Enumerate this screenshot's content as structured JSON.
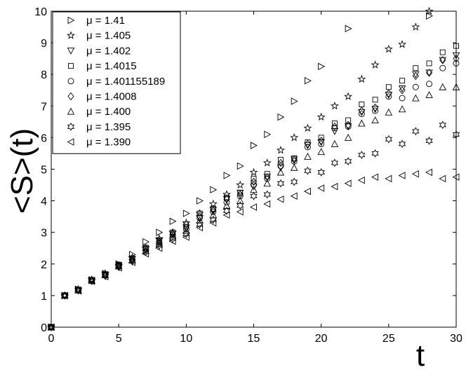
{
  "chart_data": {
    "type": "scatter",
    "xlabel": "t",
    "ylabel": "<S>(t)",
    "xlim": [
      0,
      30
    ],
    "ylim": [
      0,
      10
    ],
    "xticks": [
      "0",
      "5",
      "10",
      "15",
      "20",
      "25",
      "30"
    ],
    "yticks": [
      "0",
      "1",
      "2",
      "3",
      "4",
      "5",
      "6",
      "7",
      "8",
      "9",
      "10"
    ],
    "grid": false,
    "legend_position": "top-left",
    "series": [
      {
        "name": "μ = 1.41",
        "marker": "triangle-right",
        "x": [
          0,
          1,
          2,
          3,
          4,
          5,
          6,
          7,
          8,
          9,
          10,
          11,
          12,
          13,
          14,
          15,
          16,
          17,
          18,
          19,
          20,
          22,
          28
        ],
        "y": [
          0,
          1.0,
          1.2,
          1.5,
          1.7,
          2.0,
          2.3,
          2.7,
          3.0,
          3.35,
          3.6,
          4.0,
          4.35,
          4.8,
          5.1,
          5.75,
          6.1,
          6.65,
          7.15,
          7.8,
          8.25,
          9.45,
          9.85
        ]
      },
      {
        "name": "μ = 1.405",
        "marker": "pentagram",
        "x": [
          0,
          1,
          2,
          3,
          4,
          5,
          6,
          7,
          8,
          9,
          10,
          11,
          12,
          13,
          14,
          15,
          16,
          17,
          18,
          19,
          20,
          21,
          22,
          23,
          24,
          25,
          26,
          27,
          28
        ],
        "y": [
          0,
          1.0,
          1.2,
          1.5,
          1.7,
          1.95,
          2.2,
          2.5,
          2.8,
          3.0,
          3.3,
          3.6,
          3.9,
          4.2,
          4.5,
          4.9,
          5.2,
          5.6,
          6.0,
          6.3,
          6.65,
          7.0,
          7.3,
          7.85,
          8.3,
          8.8,
          8.95,
          9.5,
          10.0
        ]
      },
      {
        "name": "μ = 1.402",
        "marker": "triangle-down",
        "x": [
          0,
          1,
          2,
          3,
          4,
          5,
          6,
          7,
          8,
          9,
          10,
          11,
          12,
          13,
          14,
          15,
          16,
          17,
          18,
          19,
          20,
          21,
          22,
          23,
          24,
          25,
          26,
          27,
          28,
          29,
          30
        ],
        "y": [
          0,
          1.0,
          1.18,
          1.48,
          1.66,
          1.95,
          2.15,
          2.48,
          2.72,
          2.95,
          3.15,
          3.45,
          3.7,
          4.05,
          4.25,
          4.45,
          4.75,
          5.05,
          5.3,
          5.75,
          5.85,
          6.2,
          6.35,
          6.8,
          6.9,
          7.35,
          7.55,
          8.0,
          8.05,
          8.45,
          8.6
        ]
      },
      {
        "name": "μ = 1.4015",
        "marker": "square",
        "x": [
          0,
          1,
          2,
          3,
          4,
          5,
          6,
          7,
          8,
          9,
          10,
          11,
          12,
          13,
          14,
          15,
          16,
          17,
          18,
          19,
          20,
          21,
          22,
          23,
          24,
          25,
          26,
          27,
          28,
          29,
          30
        ],
        "y": [
          0,
          1.0,
          1.18,
          1.5,
          1.68,
          1.98,
          2.18,
          2.52,
          2.75,
          3.0,
          3.25,
          3.6,
          3.75,
          4.1,
          4.25,
          4.7,
          4.85,
          5.3,
          5.35,
          5.85,
          6.0,
          6.45,
          6.55,
          7.05,
          7.2,
          7.6,
          7.8,
          8.2,
          8.35,
          8.7,
          8.9
        ]
      },
      {
        "name": "μ = 1.401155189",
        "marker": "circle",
        "x": [
          0,
          1,
          2,
          3,
          4,
          5,
          6,
          7,
          8,
          9,
          10,
          11,
          12,
          13,
          14,
          15,
          16,
          17,
          18,
          19,
          20,
          21,
          22,
          23,
          24,
          25,
          26,
          27,
          28,
          29,
          30
        ],
        "y": [
          0,
          1.0,
          1.17,
          1.47,
          1.65,
          1.95,
          2.13,
          2.45,
          2.68,
          2.92,
          3.1,
          3.45,
          3.65,
          3.95,
          4.15,
          4.5,
          4.7,
          5.1,
          5.25,
          5.7,
          5.8,
          6.3,
          6.35,
          6.75,
          6.85,
          7.3,
          7.25,
          7.6,
          7.7,
          8.2,
          8.35
        ]
      },
      {
        "name": "μ = 1.4008",
        "marker": "diamond",
        "x": [
          0,
          1,
          2,
          3,
          4,
          5,
          6,
          7,
          8,
          9,
          10,
          11,
          12,
          13,
          14,
          15,
          16,
          17,
          18,
          19,
          20,
          21,
          22,
          23,
          24,
          25,
          26,
          27,
          28,
          29,
          30
        ],
        "y": [
          0,
          1.0,
          1.17,
          1.48,
          1.65,
          1.95,
          2.15,
          2.48,
          2.7,
          2.95,
          3.15,
          3.5,
          3.7,
          4.05,
          4.2,
          4.6,
          4.75,
          5.2,
          5.3,
          5.8,
          5.9,
          6.35,
          6.4,
          6.85,
          6.95,
          7.4,
          7.5,
          7.95,
          8.05,
          8.45,
          8.5
        ]
      },
      {
        "name": "μ = 1.400",
        "marker": "triangle-up",
        "x": [
          0,
          1,
          2,
          3,
          4,
          5,
          6,
          7,
          8,
          9,
          10,
          11,
          12,
          13,
          14,
          15,
          16,
          17,
          18,
          19,
          20,
          21,
          22,
          23,
          24,
          25,
          26,
          27,
          28,
          29,
          30
        ],
        "y": [
          0,
          1.0,
          1.17,
          1.47,
          1.65,
          1.93,
          2.12,
          2.42,
          2.65,
          2.88,
          3.05,
          3.38,
          3.55,
          3.85,
          4.0,
          4.35,
          4.55,
          4.9,
          5.05,
          5.4,
          5.55,
          5.8,
          6.0,
          6.45,
          6.55,
          6.8,
          6.9,
          7.25,
          7.35,
          7.6,
          7.6
        ]
      },
      {
        "name": "μ = 1.395",
        "marker": "hexagram",
        "x": [
          0,
          1,
          2,
          3,
          4,
          5,
          6,
          7,
          8,
          9,
          10,
          11,
          12,
          13,
          14,
          15,
          16,
          17,
          18,
          19,
          20,
          21,
          22,
          23,
          24,
          25,
          26,
          27,
          28,
          29,
          30
        ],
        "y": [
          0,
          1.0,
          1.16,
          1.46,
          1.62,
          1.9,
          2.08,
          2.38,
          2.58,
          2.8,
          2.95,
          3.25,
          3.4,
          3.68,
          3.85,
          4.15,
          4.2,
          4.55,
          4.6,
          4.95,
          4.9,
          5.2,
          5.25,
          5.45,
          5.5,
          5.95,
          5.8,
          6.2,
          5.9,
          6.4,
          6.1
        ]
      },
      {
        "name": "μ = 1.390",
        "marker": "triangle-left",
        "x": [
          0,
          1,
          2,
          3,
          4,
          5,
          6,
          7,
          8,
          9,
          10,
          11,
          12,
          13,
          14,
          15,
          16,
          17,
          18,
          19,
          20,
          21,
          22,
          23,
          24,
          25,
          26,
          27,
          28,
          29,
          30
        ],
        "y": [
          0,
          1.0,
          1.15,
          1.45,
          1.6,
          1.88,
          2.05,
          2.32,
          2.5,
          2.72,
          2.85,
          3.15,
          3.3,
          3.55,
          3.65,
          3.8,
          3.9,
          4.05,
          4.15,
          4.3,
          4.4,
          4.45,
          4.55,
          4.65,
          4.75,
          4.7,
          4.8,
          4.85,
          4.9,
          4.7,
          4.75
        ]
      }
    ]
  }
}
